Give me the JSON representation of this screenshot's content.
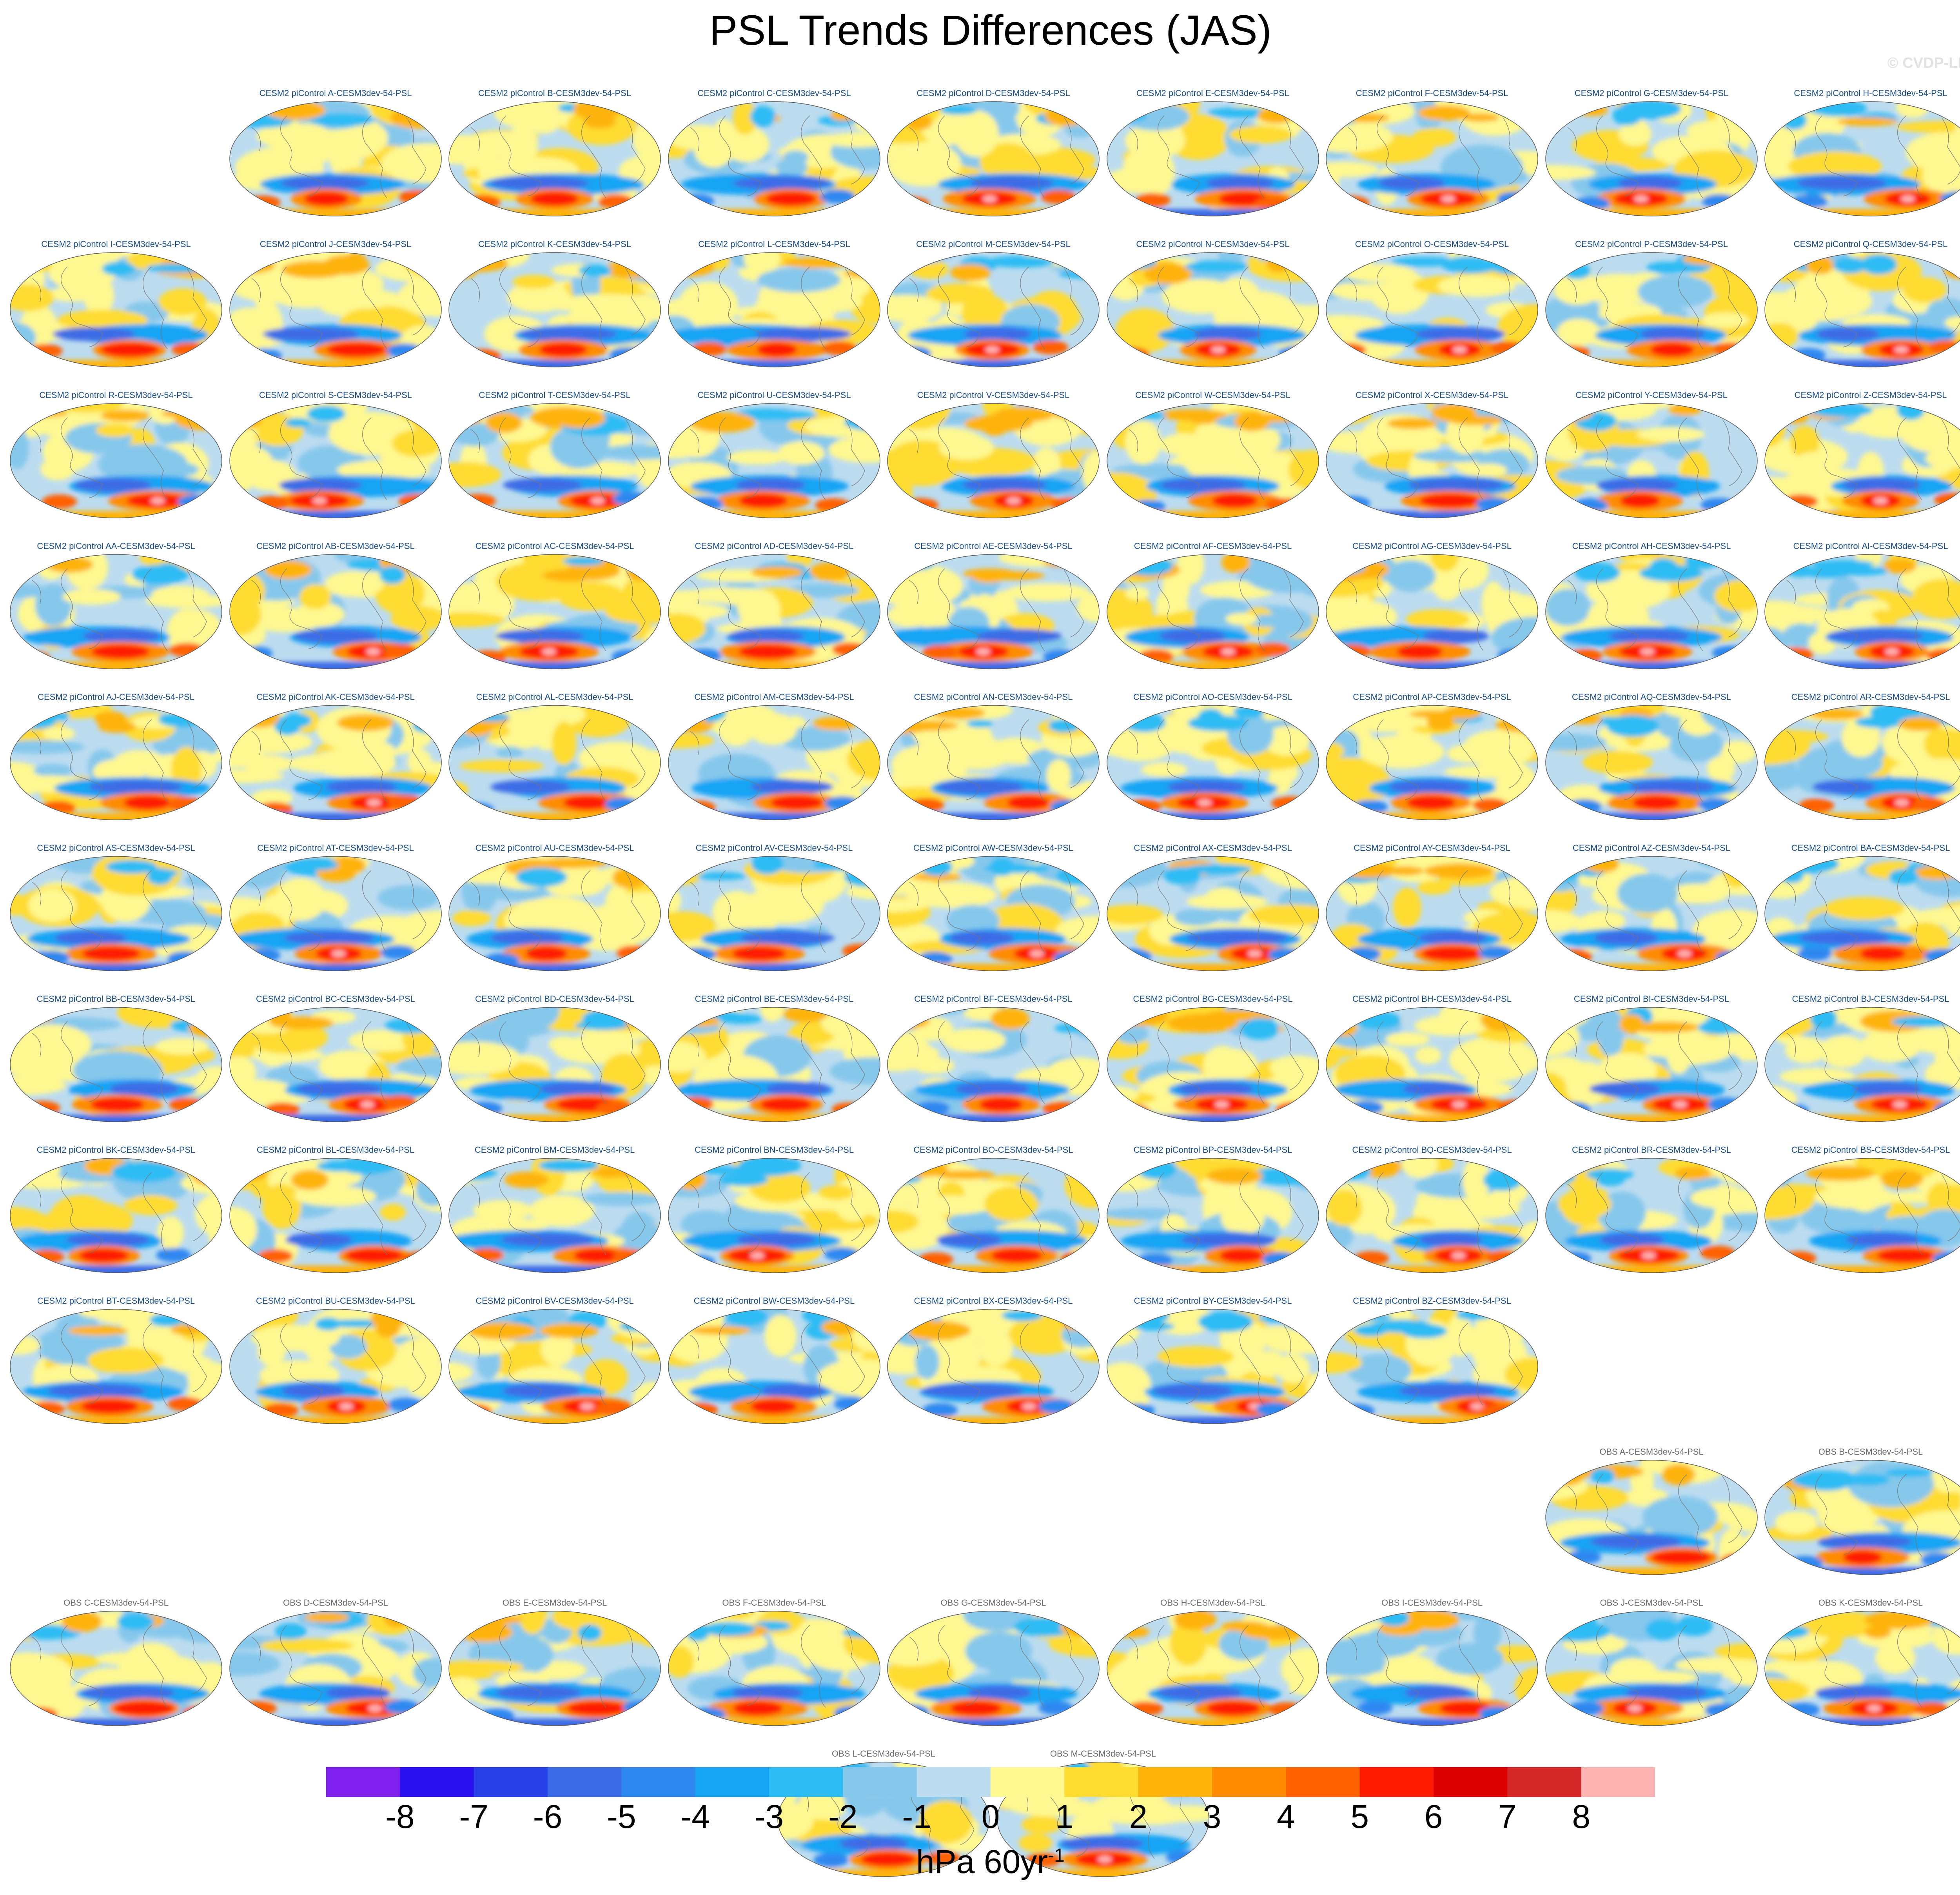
{
  "title": "PSL Trends Differences (JAS)",
  "copyright": "© CVDP-LE",
  "model_panels": [
    "A",
    "B",
    "C",
    "D",
    "E",
    "F",
    "G",
    "H",
    "I",
    "J",
    "K",
    "L",
    "M",
    "N",
    "O",
    "P",
    "Q",
    "R",
    "S",
    "T",
    "U",
    "V",
    "W",
    "X",
    "Y",
    "Z",
    "AA",
    "AB",
    "AC",
    "AD",
    "AE",
    "AF",
    "AG",
    "AH",
    "AI",
    "AJ",
    "AK",
    "AL",
    "AM",
    "AN",
    "AO",
    "AP",
    "AQ",
    "AR",
    "AS",
    "AT",
    "AU",
    "AV",
    "AW",
    "AX",
    "AY",
    "AZ",
    "BA",
    "BB",
    "BC",
    "BD",
    "BE",
    "BF",
    "BG",
    "BH",
    "BI",
    "BJ",
    "BK",
    "BL",
    "BM",
    "BN",
    "BO",
    "BP",
    "BQ",
    "BR",
    "BS",
    "BT",
    "BU",
    "BV",
    "BW",
    "BX",
    "BY",
    "BZ"
  ],
  "model_label_prefix": "CESM2 piControl ",
  "obs_panels": [
    "A",
    "B",
    "C",
    "D",
    "E",
    "F",
    "G",
    "H",
    "I",
    "J",
    "K",
    "L",
    "M"
  ],
  "obs_label_prefix": "OBS ",
  "label_suffix": "-CESM3dev-54-PSL",
  "colorbar": {
    "colors": [
      "#8020f0",
      "#2a10f0",
      "#2840e8",
      "#3c6ce6",
      "#2e88f0",
      "#17a4f4",
      "#2ebcf4",
      "#86c8ec",
      "#bcdcf0",
      "#fff890",
      "#ffdc30",
      "#ffb40c",
      "#ff8c00",
      "#ff6000",
      "#ff1c00",
      "#dc0000",
      "#d42828",
      "#ffb4b4"
    ],
    "tick_labels": [
      "-8",
      "-7",
      "-6",
      "-5",
      "-4",
      "-3",
      "-2",
      "-1",
      "0",
      "1",
      "2",
      "3",
      "4",
      "5",
      "6",
      "7",
      "8"
    ],
    "units_base": "hPa 60yr",
    "units_exp": "-1"
  }
}
